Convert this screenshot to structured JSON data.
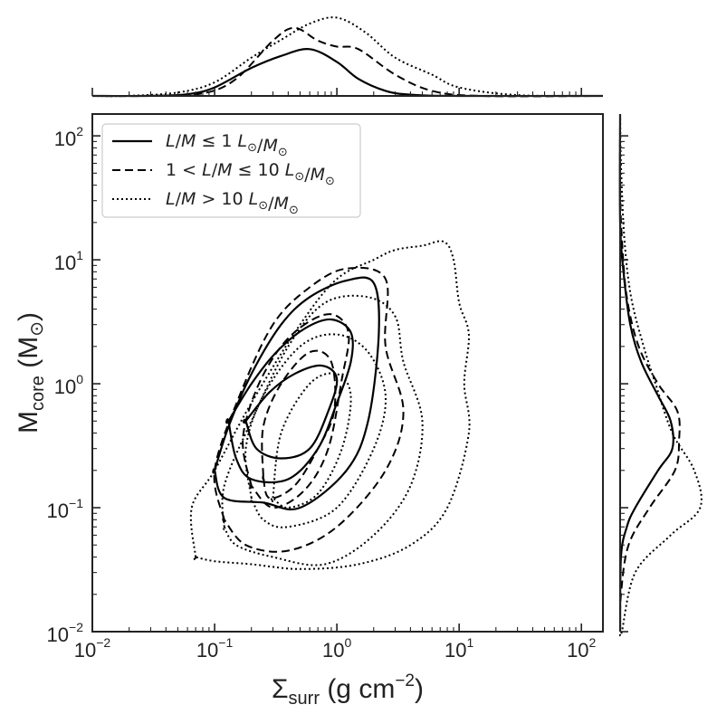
{
  "chart_data": {
    "type": "joint-kde-contour",
    "xlabel": {
      "prefix": "Σ",
      "sub": "surr",
      "unit_main": " (g cm",
      "unit_sup": "−2",
      "unit_close": ")"
    },
    "ylabel": {
      "prefix": "M",
      "sub": "core",
      "unit": " (M",
      "unit_sub": "⊙",
      "close": ")"
    },
    "x_scale": "log",
    "y_scale": "log",
    "xlim": [
      0.01,
      150
    ],
    "ylim": [
      0.01,
      150
    ],
    "x_ticks": [
      {
        "value": 0.01,
        "base": "10",
        "exp": "−2"
      },
      {
        "value": 0.1,
        "base": "10",
        "exp": "−1"
      },
      {
        "value": 1,
        "base": "10",
        "exp": "0"
      },
      {
        "value": 10,
        "base": "10",
        "exp": "1"
      },
      {
        "value": 100,
        "base": "10",
        "exp": "2"
      }
    ],
    "y_ticks": [
      {
        "value": 0.01,
        "base": "10",
        "exp": "−2"
      },
      {
        "value": 0.1,
        "base": "10",
        "exp": "−1"
      },
      {
        "value": 1,
        "base": "10",
        "exp": "0"
      },
      {
        "value": 10,
        "base": "10",
        "exp": "1"
      },
      {
        "value": 100,
        "base": "10",
        "exp": "2"
      }
    ],
    "grid": false,
    "legend_position": "top-left",
    "series": [
      {
        "name": "L/M ≤ 1 L⊙/M⊙",
        "legend_parts": [
          "L",
          "/",
          "M",
          " ≤ 1 ",
          "L",
          "⊙",
          "/",
          "M",
          "⊙"
        ],
        "linestyle": "solid",
        "color": "#000000",
        "contours": [
          [
            [
              0.18,
              0.5
            ],
            [
              0.28,
              0.85
            ],
            [
              0.45,
              1.2
            ],
            [
              0.75,
              1.4
            ],
            [
              1.0,
              1.1
            ],
            [
              0.85,
              0.6
            ],
            [
              0.6,
              0.3
            ],
            [
              0.35,
              0.25
            ],
            [
              0.22,
              0.3
            ],
            [
              0.18,
              0.5
            ]
          ],
          [
            [
              0.13,
              0.5
            ],
            [
              0.2,
              1.0
            ],
            [
              0.32,
              1.8
            ],
            [
              0.55,
              2.8
            ],
            [
              0.9,
              3.3
            ],
            [
              1.3,
              2.6
            ],
            [
              1.3,
              1.5
            ],
            [
              1.0,
              0.7
            ],
            [
              0.7,
              0.3
            ],
            [
              0.4,
              0.17
            ],
            [
              0.2,
              0.17
            ],
            [
              0.15,
              0.25
            ],
            [
              0.13,
              0.5
            ]
          ],
          [
            [
              0.1,
              0.2
            ],
            [
              0.13,
              0.45
            ],
            [
              0.2,
              1.2
            ],
            [
              0.35,
              3.0
            ],
            [
              0.6,
              5.0
            ],
            [
              1.2,
              6.8
            ],
            [
              2.0,
              6.5
            ],
            [
              2.2,
              2.5
            ],
            [
              1.8,
              0.5
            ],
            [
              1.2,
              0.2
            ],
            [
              0.5,
              0.1
            ],
            [
              0.25,
              0.11
            ],
            [
              0.12,
              0.12
            ],
            [
              0.1,
              0.2
            ]
          ]
        ],
        "marginal_x": [
          [
            0.03,
            0.001
          ],
          [
            0.06,
            0.02
          ],
          [
            0.1,
            0.1
          ],
          [
            0.2,
            0.33
          ],
          [
            0.35,
            0.47
          ],
          [
            0.6,
            0.55
          ],
          [
            1.0,
            0.4
          ],
          [
            1.5,
            0.2
          ],
          [
            2.5,
            0.06
          ],
          [
            4,
            0.015
          ],
          [
            10,
            0
          ]
        ],
        "marginal_y": [
          [
            0.04,
            0.01
          ],
          [
            0.07,
            0.08
          ],
          [
            0.1,
            0.18
          ],
          [
            0.2,
            0.45
          ],
          [
            0.3,
            0.62
          ],
          [
            0.5,
            0.6
          ],
          [
            0.8,
            0.45
          ],
          [
            1.5,
            0.25
          ],
          [
            3,
            0.12
          ],
          [
            8,
            0.04
          ],
          [
            20,
            0
          ]
        ]
      },
      {
        "name": "1 < L/M ≤ 10 L⊙/M⊙",
        "legend_parts": [
          "1 < ",
          "L",
          "/",
          "M",
          " ≤ 10 ",
          "L",
          "⊙",
          "/",
          "M",
          "⊙"
        ],
        "linestyle": "dashed",
        "color": "#000000",
        "contours": [
          [
            [
              0.25,
              0.18
            ],
            [
              0.25,
              0.45
            ],
            [
              0.35,
              1.0
            ],
            [
              0.6,
              1.8
            ],
            [
              0.9,
              1.5
            ],
            [
              0.95,
              0.6
            ],
            [
              0.7,
              0.3
            ],
            [
              0.45,
              0.15
            ],
            [
              0.28,
              0.12
            ],
            [
              0.25,
              0.18
            ]
          ],
          [
            [
              0.2,
              0.15
            ],
            [
              0.17,
              0.35
            ],
            [
              0.22,
              0.9
            ],
            [
              0.35,
              2.0
            ],
            [
              0.6,
              3.2
            ],
            [
              0.95,
              3.6
            ],
            [
              1.25,
              2.5
            ],
            [
              1.1,
              1.1
            ],
            [
              0.85,
              0.3
            ],
            [
              0.55,
              0.14
            ],
            [
              0.3,
              0.1
            ],
            [
              0.2,
              0.15
            ]
          ],
          [
            [
              0.12,
              0.08
            ],
            [
              0.1,
              0.2
            ],
            [
              0.16,
              0.8
            ],
            [
              0.3,
              3.0
            ],
            [
              0.6,
              6.0
            ],
            [
              1.2,
              8.5
            ],
            [
              2.5,
              7.0
            ],
            [
              2.5,
              2.0
            ],
            [
              3.5,
              0.6
            ],
            [
              2.5,
              0.2
            ],
            [
              1.0,
              0.07
            ],
            [
              0.4,
              0.045
            ],
            [
              0.18,
              0.05
            ],
            [
              0.12,
              0.08
            ]
          ]
        ],
        "marginal_x": [
          [
            0.03,
            0.001
          ],
          [
            0.08,
            0.03
          ],
          [
            0.15,
            0.2
          ],
          [
            0.3,
            0.65
          ],
          [
            0.45,
            0.8
          ],
          [
            0.7,
            0.65
          ],
          [
            1.0,
            0.58
          ],
          [
            1.5,
            0.55
          ],
          [
            3,
            0.25
          ],
          [
            6,
            0.06
          ],
          [
            15,
            0
          ]
        ],
        "marginal_y": [
          [
            0.02,
            0.01
          ],
          [
            0.05,
            0.1
          ],
          [
            0.1,
            0.35
          ],
          [
            0.2,
            0.65
          ],
          [
            0.35,
            0.7
          ],
          [
            0.6,
            0.68
          ],
          [
            1.0,
            0.45
          ],
          [
            2,
            0.22
          ],
          [
            5,
            0.08
          ],
          [
            15,
            0.02
          ],
          [
            40,
            0
          ]
        ]
      },
      {
        "name": "L/M > 10 L⊙/M⊙",
        "legend_parts": [
          "L",
          "/",
          "M",
          " > 10 ",
          "L",
          "⊙",
          "/",
          "M",
          "⊙"
        ],
        "linestyle": "dotted",
        "color": "#000000",
        "contours": [
          [
            [
              0.3,
              0.12
            ],
            [
              0.35,
              0.4
            ],
            [
              0.6,
              1.0
            ],
            [
              1.0,
              1.2
            ],
            [
              1.3,
              0.8
            ],
            [
              1.1,
              0.3
            ],
            [
              0.7,
              0.13
            ],
            [
              0.4,
              0.1
            ],
            [
              0.3,
              0.12
            ]
          ],
          [
            [
              0.2,
              0.12
            ],
            [
              0.18,
              0.3
            ],
            [
              0.25,
              0.8
            ],
            [
              0.5,
              2.0
            ],
            [
              1.0,
              2.5
            ],
            [
              1.8,
              1.8
            ],
            [
              2.5,
              0.8
            ],
            [
              2.0,
              0.3
            ],
            [
              1.0,
              0.1
            ],
            [
              0.4,
              0.07
            ],
            [
              0.25,
              0.08
            ],
            [
              0.2,
              0.12
            ]
          ],
          [
            [
              0.12,
              0.07
            ],
            [
              0.12,
              0.15
            ],
            [
              0.2,
              0.5
            ],
            [
              0.4,
              2.0
            ],
            [
              0.8,
              4.5
            ],
            [
              1.8,
              5.0
            ],
            [
              3.0,
              3.5
            ],
            [
              3.5,
              1.5
            ],
            [
              5.0,
              0.5
            ],
            [
              4.0,
              0.15
            ],
            [
              2.0,
              0.06
            ],
            [
              0.8,
              0.035
            ],
            [
              0.3,
              0.04
            ],
            [
              0.15,
              0.05
            ],
            [
              0.12,
              0.07
            ]
          ],
          [
            [
              0.07,
              0.04
            ],
            [
              0.065,
              0.1
            ],
            [
              0.1,
              0.2
            ],
            [
              0.2,
              0.7
            ],
            [
              0.5,
              3.0
            ],
            [
              1.0,
              7.0
            ],
            [
              2.0,
              10.0
            ],
            [
              3.0,
              12.0
            ],
            [
              5.0,
              13.0
            ],
            [
              7.5,
              14.0
            ],
            [
              9.0,
              10.0
            ],
            [
              10.0,
              4.5
            ],
            [
              12.0,
              2.5
            ],
            [
              11.0,
              1.0
            ],
            [
              12.0,
              0.4
            ],
            [
              8.0,
              0.1
            ],
            [
              4.0,
              0.05
            ],
            [
              1.5,
              0.035
            ],
            [
              0.5,
              0.032
            ],
            [
              0.2,
              0.035
            ],
            [
              0.1,
              0.037
            ],
            [
              0.07,
              0.04
            ]
          ]
        ],
        "marginal_x": [
          [
            0.02,
            0.001
          ],
          [
            0.05,
            0.04
          ],
          [
            0.1,
            0.16
          ],
          [
            0.2,
            0.45
          ],
          [
            0.35,
            0.66
          ],
          [
            0.6,
            0.85
          ],
          [
            1.0,
            0.92
          ],
          [
            1.7,
            0.75
          ],
          [
            3,
            0.45
          ],
          [
            6,
            0.25
          ],
          [
            10,
            0.1
          ],
          [
            30,
            0.01
          ]
        ],
        "marginal_y": [
          [
            0.01,
            0.02
          ],
          [
            0.03,
            0.18
          ],
          [
            0.06,
            0.6
          ],
          [
            0.1,
            0.95
          ],
          [
            0.2,
            0.88
          ],
          [
            0.4,
            0.62
          ],
          [
            1.0,
            0.42
          ],
          [
            2,
            0.28
          ],
          [
            5,
            0.13
          ],
          [
            15,
            0.05
          ],
          [
            60,
            0.01
          ]
        ]
      }
    ]
  }
}
